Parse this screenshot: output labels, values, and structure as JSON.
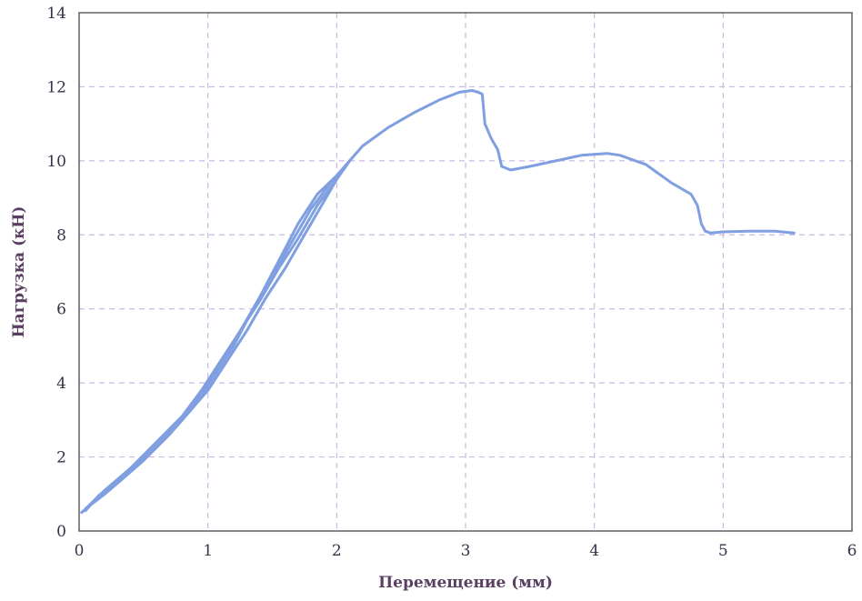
{
  "chart_data": {
    "type": "line",
    "xlabel": "Перемещение (мм)",
    "ylabel": "Нагрузка (кН)",
    "xlim": [
      0,
      6
    ],
    "ylim": [
      0,
      14
    ],
    "x_ticks": [
      0,
      1,
      2,
      3,
      4,
      5,
      6
    ],
    "y_ticks": [
      0,
      2,
      4,
      6,
      8,
      10,
      12,
      14
    ],
    "grid": true,
    "colors": {
      "series": "#7f9fe0"
    },
    "series": [
      {
        "x": [
          0.02,
          0.15,
          0.3,
          0.5,
          0.7,
          0.85,
          1.0,
          1.15,
          1.3,
          1.45,
          1.6,
          1.75,
          1.9,
          2.0,
          2.1
        ],
        "y": [
          0.5,
          0.9,
          1.3,
          1.9,
          2.6,
          3.2,
          3.8,
          4.6,
          5.4,
          6.3,
          7.1,
          8.0,
          8.9,
          9.5,
          10.0
        ]
      },
      {
        "x": [
          2.1,
          2.0,
          1.85,
          1.7,
          1.55,
          1.4,
          1.25,
          1.1,
          0.95,
          0.8,
          0.6,
          0.4,
          0.2,
          0.05
        ],
        "y": [
          10.0,
          9.6,
          9.1,
          8.3,
          7.3,
          6.3,
          5.4,
          4.6,
          3.8,
          3.1,
          2.4,
          1.7,
          1.1,
          0.6
        ]
      },
      {
        "x": [
          0.05,
          0.2,
          0.4,
          0.6,
          0.8,
          0.95,
          1.1,
          1.25,
          1.4,
          1.55,
          1.7,
          1.85,
          2.0,
          2.1
        ],
        "y": [
          0.6,
          1.0,
          1.6,
          2.3,
          3.0,
          3.7,
          4.5,
          5.4,
          6.2,
          7.1,
          7.9,
          8.8,
          9.5,
          10.0
        ]
      },
      {
        "x": [
          2.1,
          1.95,
          1.8,
          1.65,
          1.5,
          1.35,
          1.2,
          1.05,
          0.9,
          0.75,
          0.55,
          0.35,
          0.15,
          0.05
        ],
        "y": [
          10.0,
          9.4,
          8.7,
          7.8,
          6.9,
          6.0,
          5.0,
          4.2,
          3.4,
          2.8,
          2.1,
          1.5,
          0.95,
          0.55
        ]
      },
      {
        "x": [
          2.1,
          2.2,
          2.4,
          2.6,
          2.8,
          2.95,
          3.05,
          3.1,
          3.13,
          3.15,
          3.2,
          3.25,
          3.28,
          3.35,
          3.5,
          3.7,
          3.9,
          4.1,
          4.2,
          4.4,
          4.6,
          4.75,
          4.8,
          4.83,
          4.86,
          4.9,
          5.0,
          5.2,
          5.4,
          5.55
        ],
        "y": [
          10.0,
          10.4,
          10.9,
          11.3,
          11.65,
          11.85,
          11.9,
          11.85,
          11.8,
          11.0,
          10.6,
          10.3,
          9.85,
          9.75,
          9.85,
          10.0,
          10.15,
          10.2,
          10.15,
          9.9,
          9.4,
          9.1,
          8.8,
          8.3,
          8.1,
          8.05,
          8.08,
          8.1,
          8.1,
          8.05
        ]
      }
    ]
  }
}
